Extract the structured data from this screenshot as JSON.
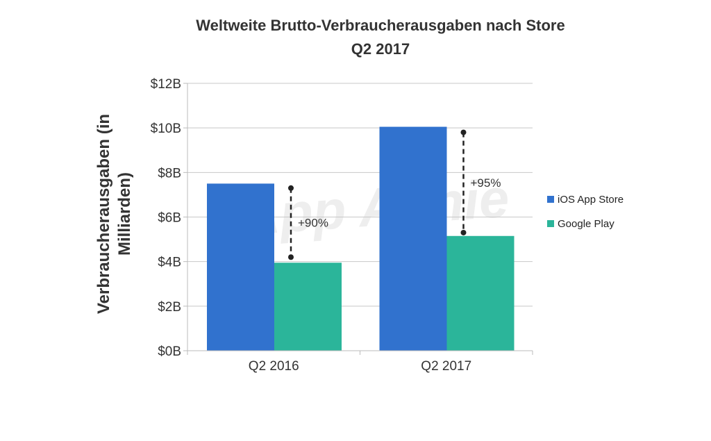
{
  "chart_data": {
    "type": "bar",
    "title": "Weltweite Brutto-Verbraucherausgaben nach Store",
    "subtitle": "Q2 2017",
    "ylabel_lines": [
      "Verbraucherausgaben (in",
      "Milliarden)"
    ],
    "xlabel": "",
    "categories": [
      "Q2 2016",
      "Q2 2017"
    ],
    "series": [
      {
        "name": "iOS App Store",
        "color": "#3172ce",
        "values": [
          7.5,
          10.05
        ]
      },
      {
        "name": "Google Play",
        "color": "#2bb59a",
        "values": [
          3.95,
          5.15
        ]
      }
    ],
    "ylim": [
      0,
      12
    ],
    "yticks": [
      0,
      2,
      4,
      6,
      8,
      10,
      12
    ],
    "ytick_labels": [
      "$0B",
      "$2B",
      "$4B",
      "$6B",
      "$8B",
      "$10B",
      "$12B"
    ],
    "grid": true,
    "legend_position": "right",
    "annotations": [
      {
        "category": "Q2 2016",
        "text": "+90%",
        "from": 4.2,
        "to": 7.3
      },
      {
        "category": "Q2 2017",
        "text": "+95%",
        "from": 5.3,
        "to": 9.8
      }
    ],
    "watermark": "App Annie"
  }
}
